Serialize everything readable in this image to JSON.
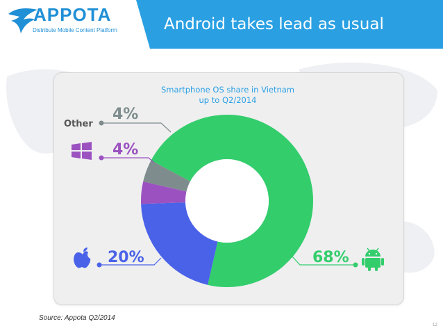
{
  "header": {
    "brand": "APPOTA",
    "tagline": "Distribute Mobile Content Platform",
    "title": "Android takes lead as usual"
  },
  "colors": {
    "band": "#2aa0e3",
    "android": "#33cd6c",
    "ios": "#4a62e8",
    "windows": "#9b52c0",
    "other": "#7f8c8d"
  },
  "chart_data": {
    "type": "pie",
    "donut": true,
    "title": "Smartphone OS share in Vietnam",
    "subtitle": "up to Q2/2014",
    "categories": [
      "Android",
      "iOS",
      "Windows Phone",
      "Other"
    ],
    "values": [
      68,
      20,
      4,
      4
    ],
    "unit": "%",
    "labels": [
      {
        "key": "android",
        "text": "68%",
        "name": "",
        "icon": "android-icon"
      },
      {
        "key": "ios",
        "text": "20%",
        "name": "",
        "icon": "apple-icon"
      },
      {
        "key": "windows",
        "text": "4%",
        "name": "",
        "icon": "windows-icon"
      },
      {
        "key": "other",
        "text": "4%",
        "name": "Other",
        "icon": ""
      }
    ]
  },
  "footer": {
    "source": "Source: Appota Q2/2014",
    "page": "12"
  }
}
